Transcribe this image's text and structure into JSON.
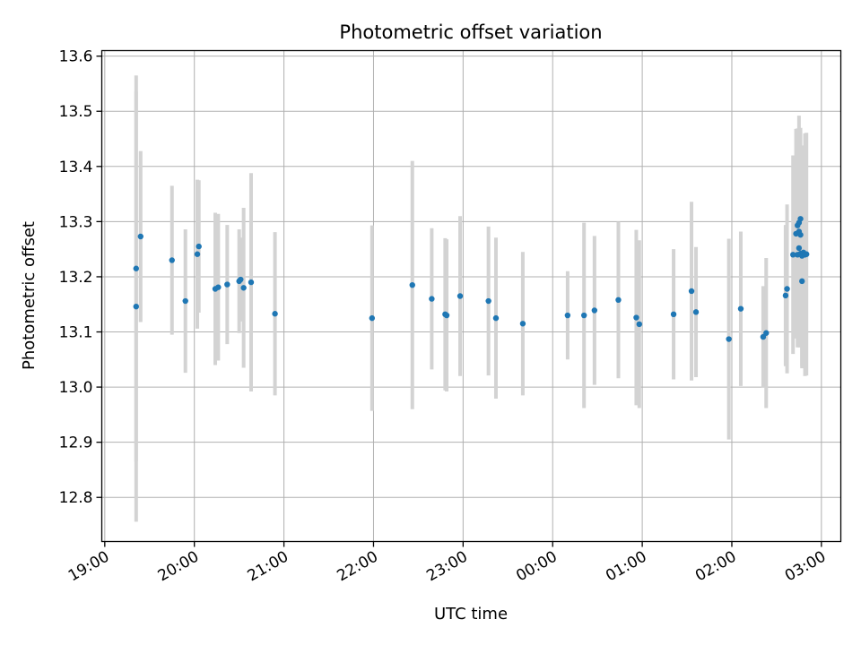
{
  "chart_data": {
    "type": "scatter",
    "title": "Photometric offset variation",
    "xlabel": "UTC time",
    "ylabel": "Photometric offset",
    "grid": true,
    "xlim": [
      "18:58",
      "03:13"
    ],
    "ylim": [
      12.72,
      13.61
    ],
    "x_ticks": [
      "19:00",
      "20:00",
      "21:00",
      "22:00",
      "23:00",
      "00:00",
      "01:00",
      "02:00",
      "03:00"
    ],
    "y_ticks": [
      "12.8",
      "12.9",
      "13.0",
      "13.1",
      "13.2",
      "13.3",
      "13.4",
      "13.5",
      "13.6"
    ],
    "colors": {
      "point": "#1f77b4",
      "errorbar": "#d3d3d3",
      "grid": "#b0b0b0"
    },
    "series": [
      {
        "x": [
          "19:21",
          "19:21",
          "19:24",
          "19:45",
          "19:54",
          "20:02",
          "20:03",
          "20:14",
          "20:16",
          "20:22",
          "20:30",
          "20:31",
          "20:33",
          "20:38",
          "20:54",
          "21:59",
          "22:26",
          "22:39",
          "22:48",
          "22:49",
          "22:58",
          "23:17",
          "23:22",
          "23:40",
          "00:10",
          "00:21",
          "00:28",
          "00:44",
          "00:56",
          "00:58",
          "01:21",
          "01:33",
          "01:36",
          "01:58",
          "02:06",
          "02:21",
          "02:23",
          "02:36",
          "02:37",
          "02:41",
          "02:43",
          "02:44",
          "02:44",
          "02:45",
          "02:45",
          "02:45",
          "02:46",
          "02:46",
          "02:46",
          "02:47",
          "02:47",
          "02:48",
          "02:49",
          "02:50"
        ],
        "y": [
          13.146,
          13.215,
          13.273,
          13.23,
          13.156,
          13.241,
          13.255,
          13.178,
          13.181,
          13.186,
          13.192,
          13.195,
          13.18,
          13.19,
          13.133,
          13.125,
          13.185,
          13.16,
          13.132,
          13.13,
          13.165,
          13.156,
          13.125,
          13.115,
          13.13,
          13.13,
          13.139,
          13.158,
          13.126,
          13.114,
          13.132,
          13.174,
          13.136,
          13.087,
          13.142,
          13.091,
          13.098,
          13.166,
          13.178,
          13.24,
          13.278,
          13.293,
          13.24,
          13.298,
          13.252,
          13.282,
          13.305,
          13.276,
          13.242,
          13.238,
          13.192,
          13.244,
          13.24,
          13.241
        ],
        "yerr": [
          0.39,
          0.35,
          0.155,
          0.135,
          0.13,
          0.135,
          0.12,
          0.138,
          0.133,
          0.108,
          0.094,
          0.076,
          0.145,
          0.198,
          0.148,
          0.168,
          0.225,
          0.128,
          0.138,
          0.138,
          0.145,
          0.135,
          0.146,
          0.13,
          0.08,
          0.168,
          0.135,
          0.142,
          0.159,
          0.152,
          0.118,
          0.162,
          0.118,
          0.182,
          0.14,
          0.092,
          0.136,
          0.128,
          0.153,
          0.18,
          0.19,
          0.176,
          0.168,
          0.168,
          0.178,
          0.21,
          0.165,
          0.18,
          0.17,
          0.2,
          0.158,
          0.175,
          0.22,
          0.22
        ]
      }
    ]
  }
}
